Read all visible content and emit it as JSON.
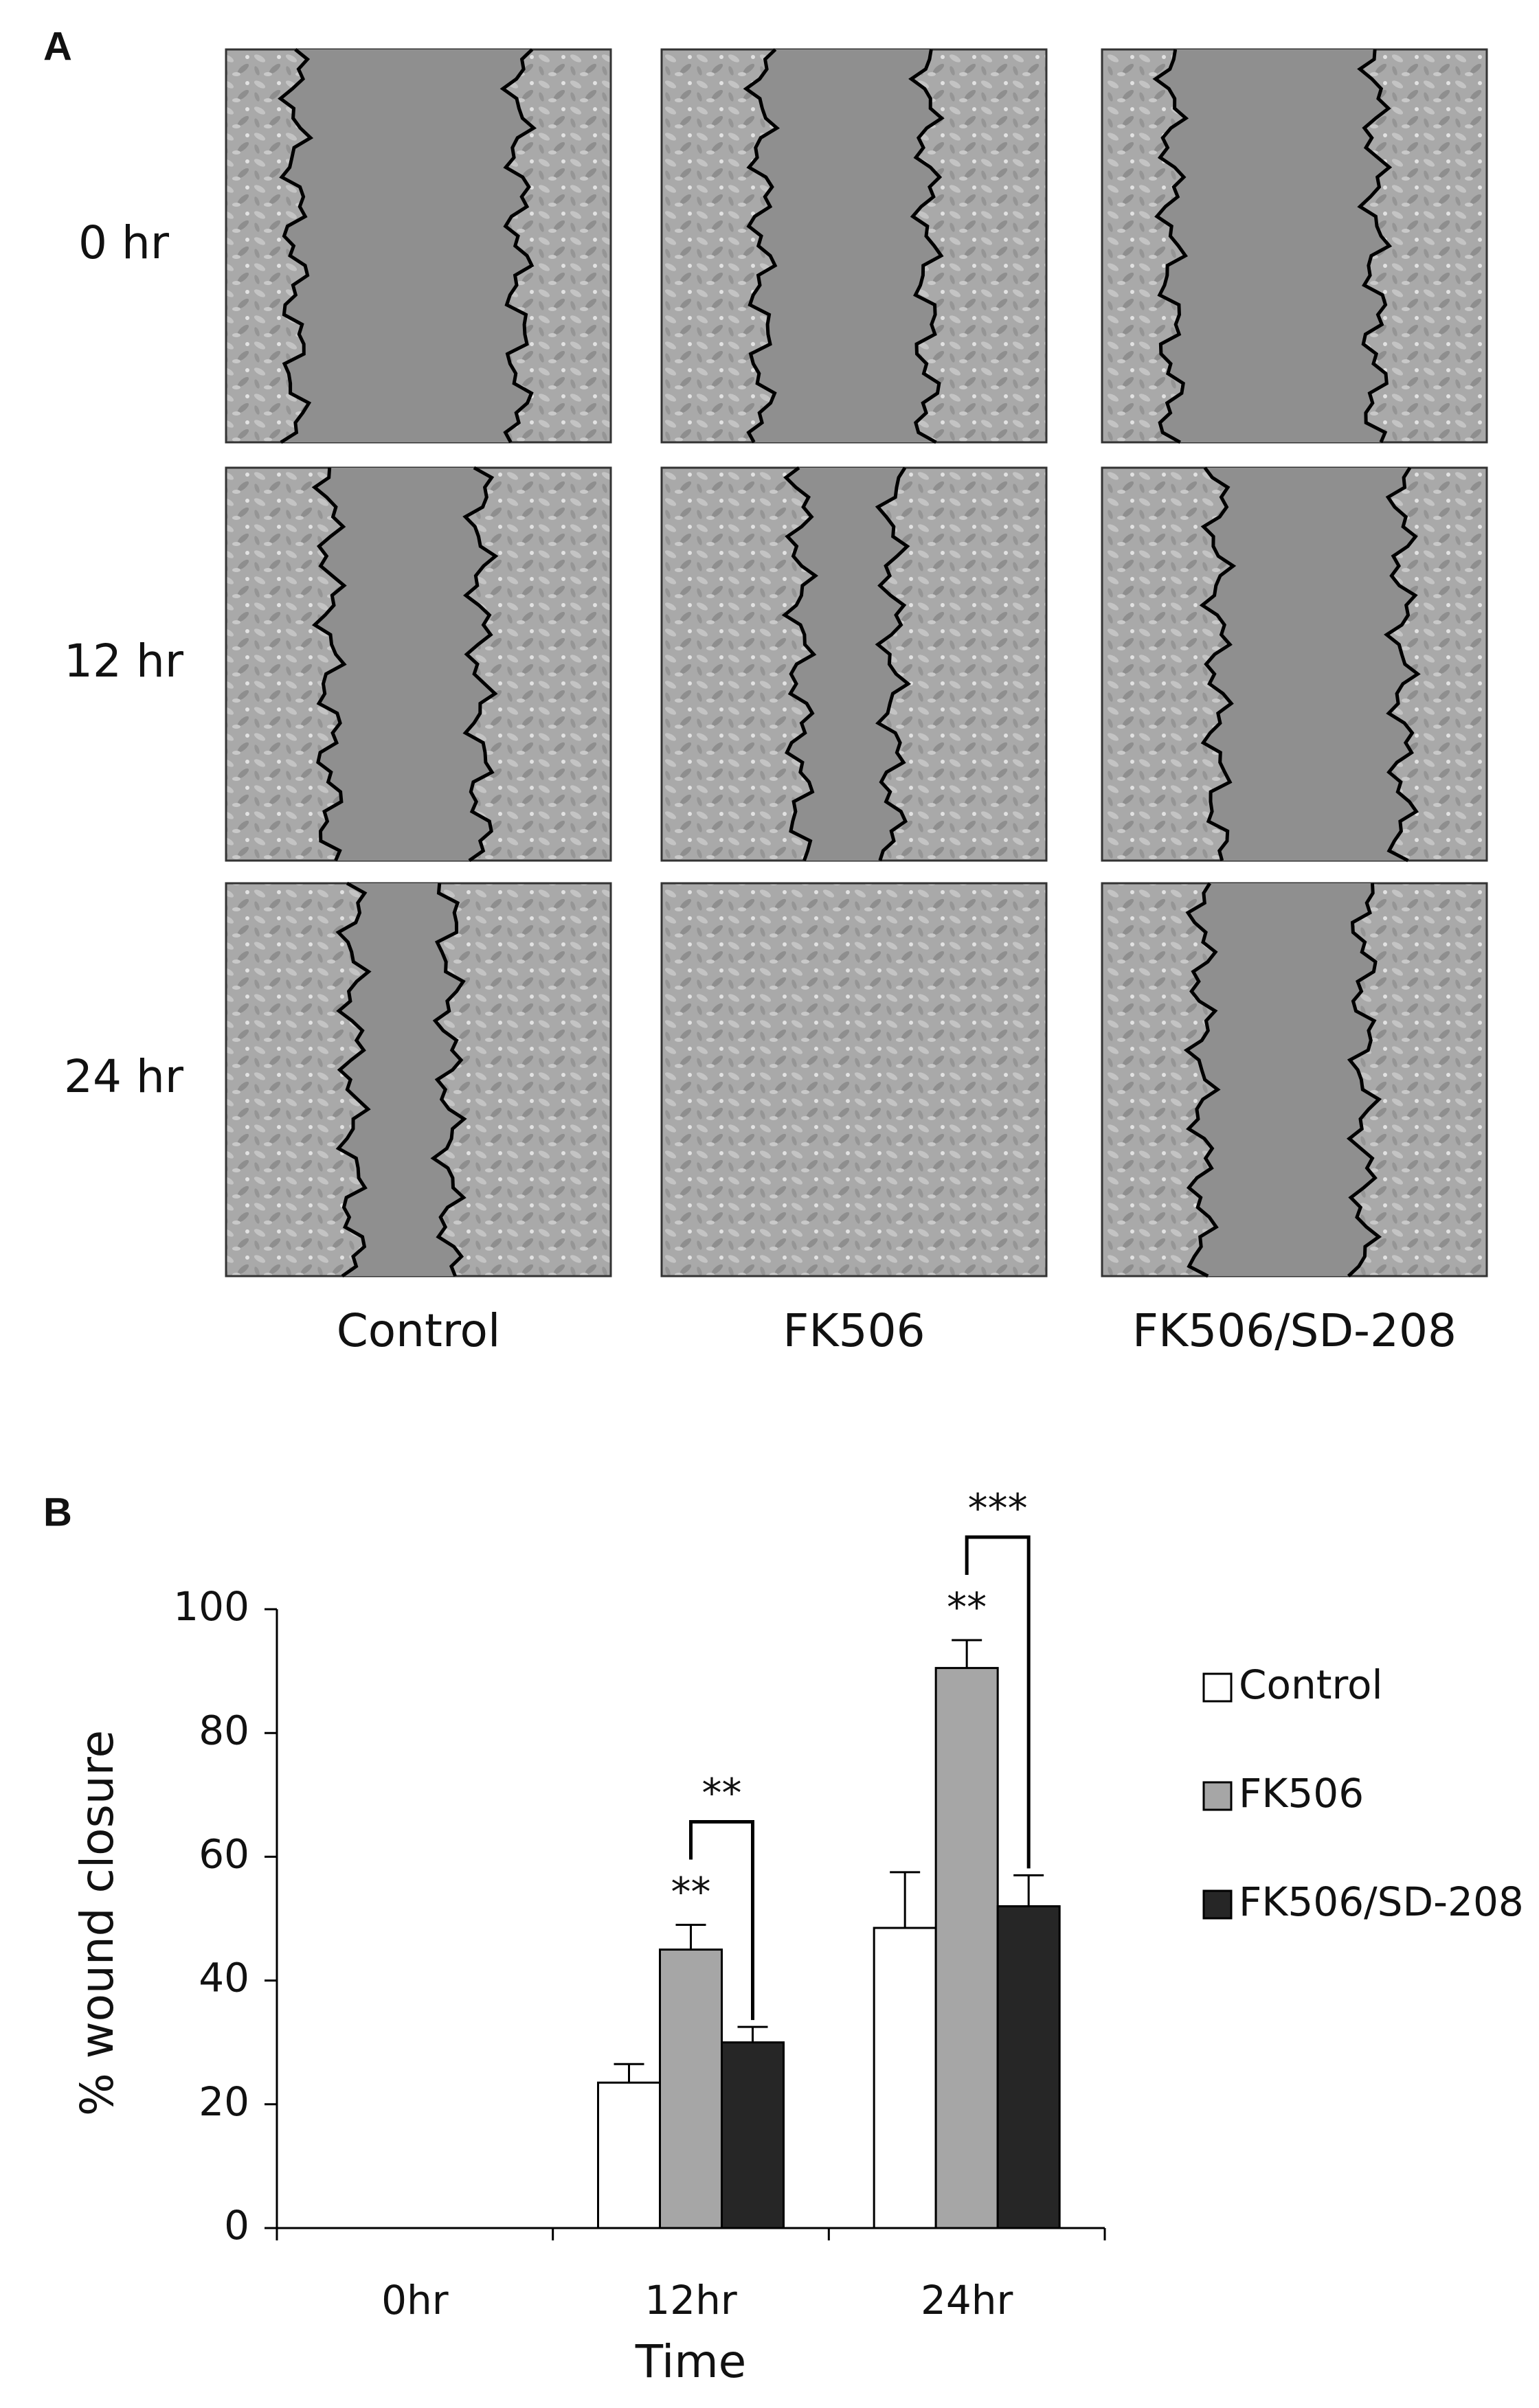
{
  "panel_a": {
    "label": "A",
    "rows": [
      "0 hr",
      "12 hr",
      "24 hr"
    ],
    "columns": [
      "Control",
      "FK506",
      "FK506/SD-208"
    ]
  },
  "panel_b": {
    "label": "B"
  },
  "chart_data": {
    "type": "bar",
    "categories": [
      "0hr",
      "12hr",
      "24hr"
    ],
    "series": [
      {
        "name": "Control",
        "color": "#ffffff",
        "values": [
          null,
          23.5,
          48.5
        ],
        "errors": [
          null,
          3,
          9
        ]
      },
      {
        "name": "FK506",
        "color": "#a6a6a6",
        "values": [
          null,
          45,
          90.5
        ],
        "errors": [
          null,
          4,
          4.5
        ]
      },
      {
        "name": "FK506/SD-208",
        "color": "#262626",
        "values": [
          null,
          30,
          52
        ],
        "errors": [
          null,
          2.5,
          5
        ]
      }
    ],
    "ylim": [
      0,
      100
    ],
    "yticks": [
      0,
      20,
      40,
      60,
      80,
      100
    ],
    "xlabel": "Time",
    "ylabel": "% wound closure",
    "legend": "right",
    "annotations": [
      {
        "text": "**",
        "over": "FK506",
        "at": "12hr"
      },
      {
        "text": "**",
        "between": [
          "FK506",
          "FK506/SD-208"
        ],
        "at": "12hr"
      },
      {
        "text": "**",
        "over": "FK506",
        "at": "24hr"
      },
      {
        "text": "***",
        "between": [
          "FK506",
          "FK506/SD-208"
        ],
        "at": "24hr"
      }
    ]
  }
}
